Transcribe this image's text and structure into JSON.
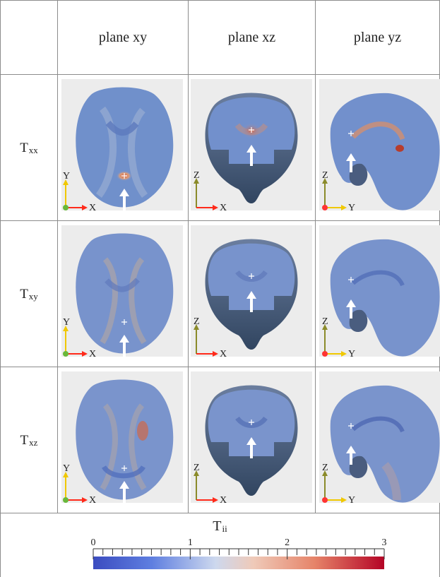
{
  "table": {
    "column_headers": [
      "plane xy",
      "plane xz",
      "plane yz"
    ],
    "row_labels": [
      {
        "main": "T",
        "sub": "xx"
      },
      {
        "main": "T",
        "sub": "xy"
      },
      {
        "main": "T",
        "sub": "xz"
      }
    ]
  },
  "panels": {
    "axis_labels": {
      "xy": {
        "vertical": "Y",
        "horizontal": "X"
      },
      "xz": {
        "vertical": "Z",
        "horizontal": "X"
      },
      "yz": {
        "vertical": "Z",
        "horizontal": "Y"
      }
    }
  },
  "colorbar": {
    "title_main": "T",
    "title_sub": "ii",
    "ticks": [
      {
        "label": "0",
        "value": 0
      },
      {
        "label": "1",
        "value": 1
      },
      {
        "label": "2",
        "value": 2
      },
      {
        "label": "3",
        "value": 3
      }
    ],
    "range": [
      0,
      3
    ],
    "colors": {
      "low": "#3b4cc0",
      "mid": "#dddddd",
      "high": "#b40426"
    }
  },
  "style_colors": {
    "x_axis": "#ff2a1a",
    "y_axis": "#f0c800",
    "z_axis": "#8b8b2a",
    "origin_x": "#69b83b",
    "origin_red": "#ff3333",
    "arrow": "#ffffff"
  }
}
